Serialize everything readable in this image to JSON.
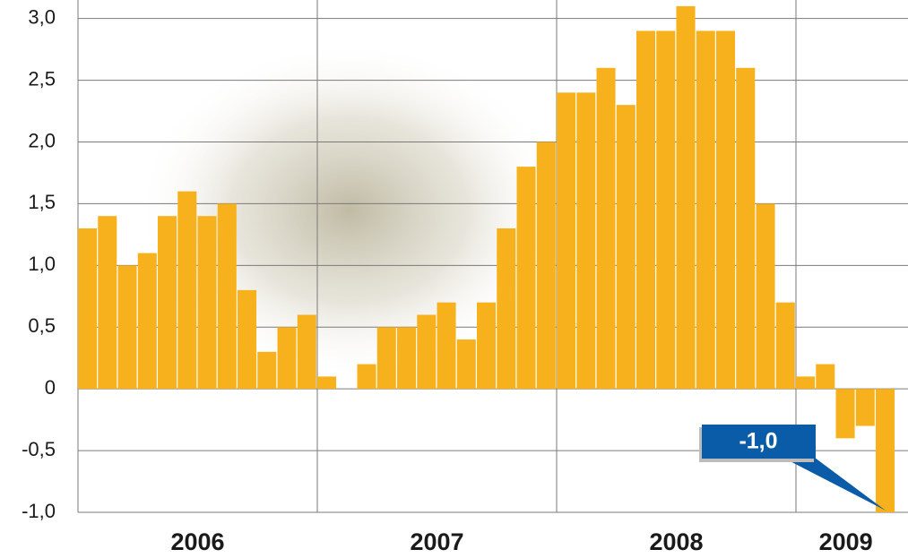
{
  "chart_data": {
    "type": "bar",
    "categories": [
      null,
      null,
      null,
      null,
      null,
      null,
      null,
      null,
      null,
      null,
      null,
      null,
      null,
      null,
      null,
      null,
      null,
      null,
      null,
      null,
      null,
      null,
      null,
      null,
      null,
      null,
      null,
      null,
      null,
      null,
      null,
      null,
      null,
      null,
      null,
      null,
      null,
      null,
      null,
      null,
      null
    ],
    "values": [
      1.3,
      1.4,
      1.0,
      1.1,
      1.4,
      1.6,
      1.4,
      1.5,
      0.8,
      0.3,
      0.5,
      0.6,
      0.1,
      0.0,
      0.2,
      0.5,
      0.5,
      0.6,
      0.7,
      0.4,
      0.7,
      1.3,
      1.8,
      2.0,
      2.4,
      2.4,
      2.6,
      2.3,
      2.9,
      2.9,
      3.1,
      2.9,
      2.9,
      2.6,
      1.5,
      0.7,
      0.1,
      0.2,
      -0.4,
      -0.3,
      -1.0
    ],
    "color": "#f7b11c",
    "year_labels": [
      "2006",
      "2007",
      "2008",
      "2009"
    ],
    "ylim": [
      -1,
      3.15
    ],
    "yticks": [
      {
        "value": -1.0,
        "label": "-1,0"
      },
      {
        "value": -0.5,
        "label": "-0,5"
      },
      0,
      {
        "value": 0.5,
        "label": "0,5"
      },
      {
        "value": 1.0,
        "label": "1,0"
      },
      {
        "value": 1.5,
        "label": "1,5"
      },
      {
        "value": 2.0,
        "label": "2,0"
      },
      {
        "value": 2.5,
        "label": "2,5"
      },
      {
        "value": 3.0,
        "label": "3,0"
      }
    ],
    "grid": true,
    "annotation": "-1,0",
    "annotation_color": "#0b5ca8"
  }
}
